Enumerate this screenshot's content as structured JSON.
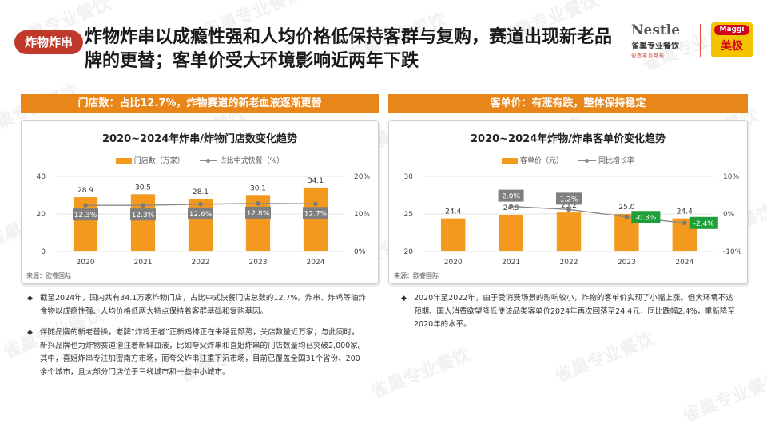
{
  "watermark": "雀巢专业餐饮",
  "header": {
    "badge": "炸物炸串",
    "title": "炸物炸串以成瘾性强和人均价格低保持客群与复购，赛道出现新老品牌的更替；客单价受大环境影响近两年下跌"
  },
  "logos": {
    "nestle": {
      "brand": "Nestle",
      "tagline": "雀巢专业餐饮",
      "slogan": "创造非凡可能"
    },
    "maggi": {
      "brand": "Maggi",
      "name": "美极"
    }
  },
  "left_panel": {
    "header": "门店数：占比12.7%，炸物赛道的新老血液逐渐更替",
    "source": "来源：欧睿国际"
  },
  "right_panel": {
    "header": "客单价：有涨有跌，整体保持稳定",
    "source": "来源：欧睿国际"
  },
  "chart_data": [
    {
      "type": "bar",
      "title": "2020~2024年炸串/炸物门店数变化趋势",
      "categories": [
        "2020",
        "2021",
        "2022",
        "2023",
        "2024"
      ],
      "series": [
        {
          "name": "门店数（万家）",
          "type": "bar",
          "axis": "left",
          "values": [
            28.9,
            30.5,
            28.1,
            30.1,
            34.1
          ],
          "labels": [
            "28.9",
            "30.5",
            "28.1",
            "30.1",
            "34.1"
          ]
        },
        {
          "name": "占比中式快餐（%）",
          "type": "line",
          "axis": "right",
          "values": [
            12.3,
            12.3,
            12.6,
            12.8,
            12.7
          ],
          "labels": [
            "12.3%",
            "12.3%",
            "12.6%",
            "12.8%",
            "12.7%"
          ]
        }
      ],
      "y_left": {
        "min": 0,
        "max": 40,
        "ticks": [
          "0",
          "20",
          "40"
        ]
      },
      "y_right": {
        "min": 0,
        "max": 20,
        "ticks": [
          "0%",
          "10%",
          "20%"
        ]
      },
      "colors": {
        "bar": "#f39a1e",
        "line": "#8a8a8a",
        "label_box": "#7f7f7f"
      }
    },
    {
      "type": "bar",
      "title": "2020~2024年炸物/炸串客单价变化趋势",
      "categories": [
        "2020",
        "2021",
        "2022",
        "2023",
        "2024"
      ],
      "series": [
        {
          "name": "客单价（元）",
          "type": "bar",
          "axis": "left",
          "values": [
            24.4,
            24.9,
            25.2,
            25.0,
            24.4
          ],
          "labels": [
            "24.4",
            "24.9",
            "25.2",
            "25.0",
            "24.4"
          ]
        },
        {
          "name": "同比增长率",
          "type": "line",
          "axis": "right",
          "values": [
            null,
            2.0,
            1.2,
            -0.8,
            -2.4
          ],
          "labels": [
            "",
            "2.0%",
            "1.2%",
            "-0.8%",
            "-2.4%"
          ]
        }
      ],
      "y_left": {
        "min": 20,
        "max": 30,
        "ticks": [
          "20",
          "25",
          "30"
        ]
      },
      "y_right": {
        "min": -10,
        "max": 10,
        "ticks": [
          "-10%",
          "0%",
          "10%"
        ]
      },
      "colors": {
        "bar": "#f39a1e",
        "line": "#8a8a8a",
        "label_box_positive": "#7f7f7f",
        "label_box_negative": "#1f9e3a"
      }
    }
  ],
  "bullets_left": [
    "截至2024年，国内共有34.1万家炸物门店，占比中式快餐门店总数的12.7%。炸串、炸鸡等油炸食物以成瘾性强、人均价格低两大特点保持着客群基础和复购基因。",
    "伴随品牌的新老替换，老牌“炸鸡王者”正新鸡排正在来路显颓势，关店数量近万家；与此同时，新兴品牌也为炸物赛道灌注着新鲜血液，比如夸父炸串和喜姐炸串的门店数量均已突破2,000家。其中，喜姐炸串专注加密南方市场，而夸父炸串注重下沉市场，目前已覆盖全国31个省份、200余个城市，且大部分门店位于三线城市和一些中小城市。"
  ],
  "bullets_right": [
    "2020年至2022年，由于受消费场景的影响较小，炸物的客单价实现了小幅上涨。但大环境不达预期、国人消费欲望降低使该品类客单价2024年再次回落至24.4元，同比跌幅2.4%，重新降至2020年的水平。"
  ]
}
